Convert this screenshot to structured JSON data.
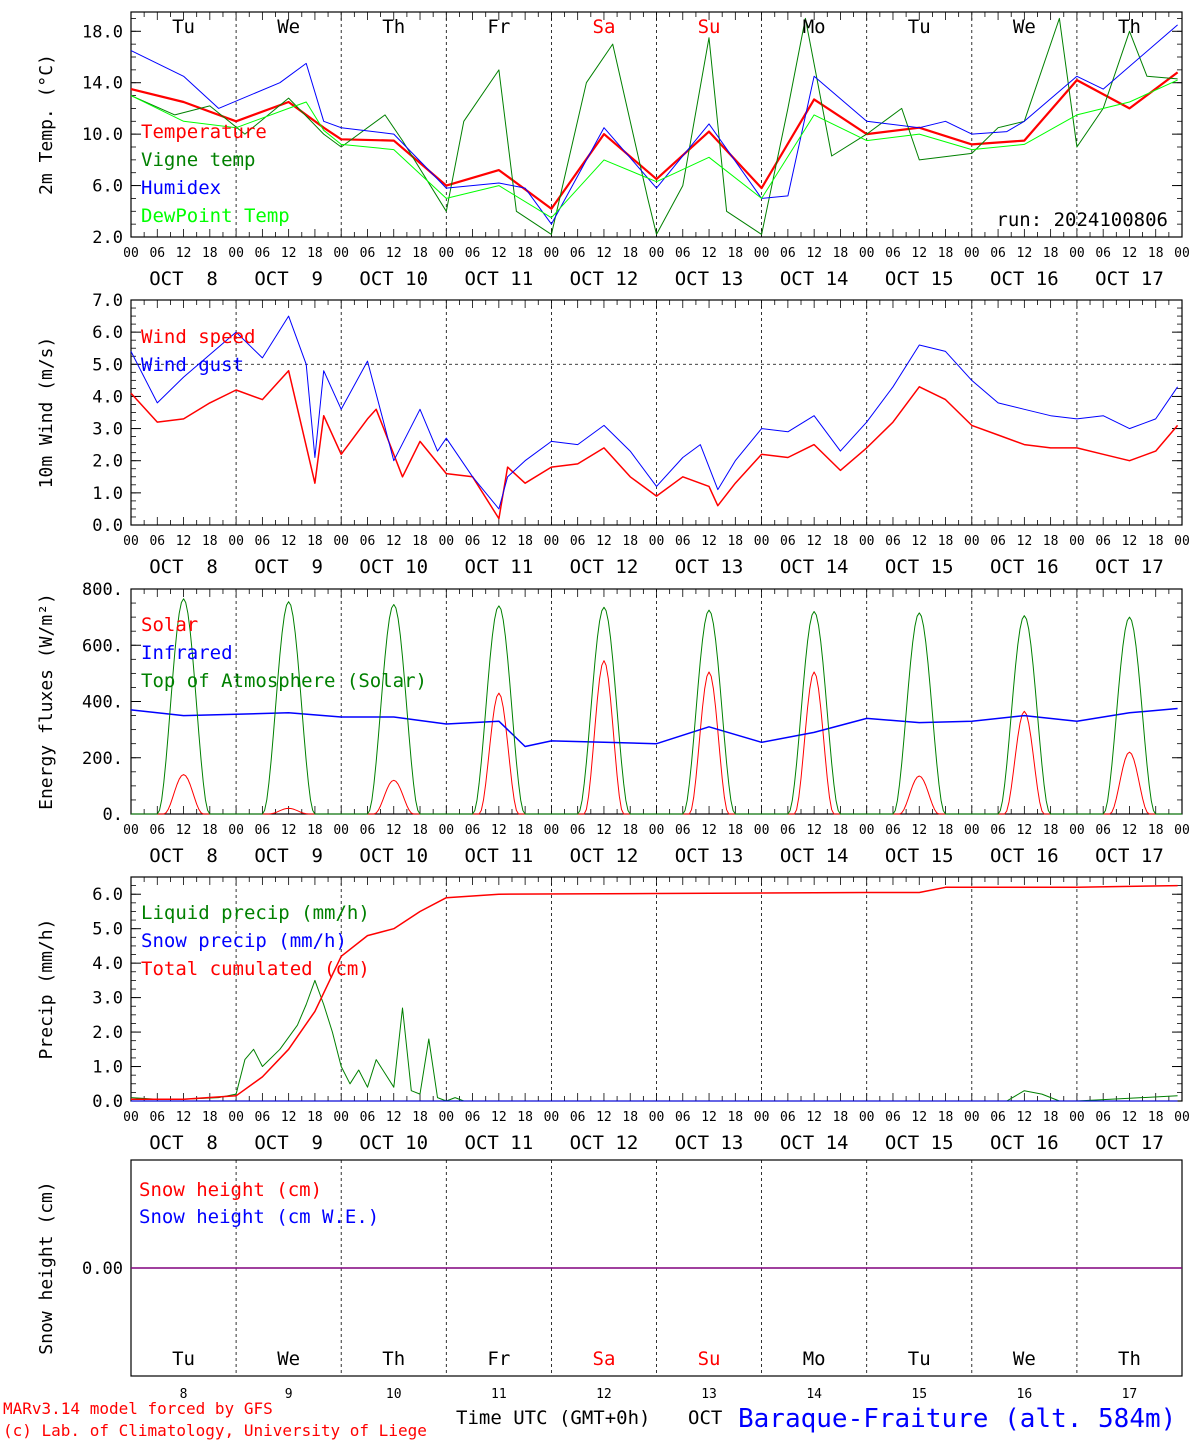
{
  "meta": {
    "run_label": "run: 2024100806",
    "model_credit": "MARv3.14 model forced by GFS",
    "lab_credit": "(c) Lab. of Climatology, University of Liege",
    "time_axis_label": "Time UTC (GMT+0h)",
    "month_label": "OCT",
    "station": "Baraque-Fraiture (alt. 584m)"
  },
  "colors": {
    "red": "#ff0000",
    "blue": "#0000ff",
    "green": "#008000",
    "lightgreen": "#00ff00",
    "purple": "#80007f",
    "weekend": "#ff0000"
  },
  "days": [
    {
      "abbr": "Tu",
      "date": "8",
      "weekend": false
    },
    {
      "abbr": "We",
      "date": "9",
      "weekend": false
    },
    {
      "abbr": "Th",
      "date": "10",
      "weekend": false
    },
    {
      "abbr": "Fr",
      "date": "11",
      "weekend": false
    },
    {
      "abbr": "Sa",
      "date": "12",
      "weekend": true
    },
    {
      "abbr": "Su",
      "date": "13",
      "weekend": true
    },
    {
      "abbr": "Mo",
      "date": "14",
      "weekend": false
    },
    {
      "abbr": "Tu",
      "date": "15",
      "weekend": false
    },
    {
      "abbr": "We",
      "date": "16",
      "weekend": false
    },
    {
      "abbr": "Th",
      "date": "17",
      "weekend": false
    }
  ],
  "hour_ticks": [
    "00",
    "06",
    "12",
    "18"
  ],
  "date_labels": [
    "OCT  8",
    "OCT  9",
    "OCT 10",
    "OCT 11",
    "OCT 12",
    "OCT 13",
    "OCT 14",
    "OCT 15",
    "OCT 16",
    "OCT 17"
  ],
  "chart_data": [
    {
      "type": "line",
      "ylabel": "2m Temp. (°C)",
      "ylim": [
        2,
        19.5
      ],
      "yticks": [
        2,
        6,
        10,
        14,
        18
      ],
      "ytick_labels": [
        "2.0",
        "6.0",
        "10.0",
        "14.0",
        "18.0"
      ],
      "x_unit": "hours since 00 UTC OCT 8",
      "series": [
        {
          "name": "Temperature",
          "color": "red",
          "width": 2.2,
          "x": [
            0,
            12,
            24,
            36,
            44,
            48,
            60,
            72,
            84,
            96,
            108,
            120,
            132,
            144,
            156,
            168,
            180,
            192,
            204,
            216,
            228,
            239
          ],
          "y": [
            13.5,
            12.5,
            11,
            12.5,
            10.5,
            9.6,
            9.5,
            6,
            7.2,
            4.2,
            10,
            6.5,
            10.2,
            5.8,
            12.7,
            10,
            10.5,
            9.2,
            9.5,
            14.2,
            12,
            14.8
          ]
        },
        {
          "name": "Vigne temp",
          "color": "green",
          "width": 1,
          "x": [
            0,
            10,
            18,
            26,
            36,
            44,
            48,
            58,
            62,
            72,
            76,
            84,
            88,
            96,
            104,
            110,
            118,
            120,
            126,
            132,
            136,
            144,
            150,
            154,
            160,
            168,
            176,
            180,
            192,
            198,
            204,
            212,
            216,
            222,
            228,
            232,
            239
          ],
          "y": [
            13,
            11.5,
            12.2,
            10,
            12.8,
            10,
            9,
            11.5,
            9.5,
            4,
            11,
            15,
            4,
            2.2,
            14,
            17,
            5,
            2.2,
            6,
            17.5,
            4,
            2.2,
            12,
            19,
            8.3,
            10,
            12,
            8,
            8.5,
            10.5,
            11,
            19,
            9,
            12,
            18,
            14.5,
            14.3
          ]
        },
        {
          "name": "Humidex",
          "color": "blue",
          "width": 1,
          "x": [
            0,
            12,
            20,
            34,
            40,
            44,
            48,
            60,
            72,
            84,
            90,
            96,
            108,
            120,
            132,
            144,
            150,
            156,
            168,
            180,
            186,
            192,
            200,
            204,
            216,
            222,
            239
          ],
          "y": [
            16.5,
            14.5,
            12,
            14,
            15.5,
            11,
            10.5,
            10,
            5.8,
            6.2,
            5.8,
            3,
            10.5,
            5.8,
            10.8,
            5,
            5.2,
            14.5,
            11,
            10.5,
            11,
            10,
            10.2,
            11,
            14.5,
            13.5,
            18.5
          ]
        },
        {
          "name": "DewPoint Temp",
          "color": "lightgreen",
          "width": 1,
          "x": [
            0,
            12,
            24,
            36,
            40,
            44,
            48,
            60,
            72,
            84,
            96,
            108,
            120,
            132,
            144,
            156,
            168,
            180,
            192,
            204,
            216,
            228,
            239
          ],
          "y": [
            13,
            11,
            10.5,
            12,
            12.5,
            10.3,
            9.2,
            8.8,
            5,
            6,
            3.5,
            8,
            6.3,
            8.2,
            5,
            11.5,
            9.5,
            10,
            8.8,
            9.2,
            11.5,
            12.5,
            14.2
          ]
        }
      ],
      "legend": [
        "Temperature",
        "Vigne temp",
        "Humidex",
        "DewPoint Temp"
      ]
    },
    {
      "type": "line",
      "ylabel": "10m Wind (m/s)",
      "ylim": [
        0,
        7
      ],
      "yticks": [
        0,
        1,
        2,
        3,
        4,
        5,
        6,
        7
      ],
      "ytick_labels": [
        "0.0",
        "1.0",
        "2.0",
        "3.0",
        "4.0",
        "5.0",
        "6.0",
        "7.0"
      ],
      "reference_line": 5,
      "series": [
        {
          "name": "Wind speed",
          "color": "red",
          "width": 1.5,
          "x": [
            0,
            6,
            12,
            18,
            24,
            30,
            36,
            42,
            44,
            48,
            54,
            56,
            62,
            66,
            72,
            78,
            84,
            86,
            90,
            96,
            102,
            108,
            114,
            120,
            126,
            132,
            134,
            138,
            144,
            150,
            156,
            162,
            168,
            174,
            180,
            186,
            192,
            198,
            204,
            210,
            216,
            222,
            228,
            234,
            239
          ],
          "y": [
            4.1,
            3.2,
            3.3,
            3.8,
            4.2,
            3.9,
            4.8,
            1.3,
            3.4,
            2.2,
            3.3,
            3.6,
            1.5,
            2.6,
            1.6,
            1.5,
            0.2,
            1.8,
            1.3,
            1.8,
            1.9,
            2.4,
            1.5,
            0.9,
            1.5,
            1.2,
            0.6,
            1.3,
            2.2,
            2.1,
            2.5,
            1.7,
            2.4,
            3.2,
            4.3,
            3.9,
            3.1,
            2.8,
            2.5,
            2.4,
            2.4,
            2.2,
            2.0,
            2.3,
            3.1
          ]
        },
        {
          "name": "Wind gust",
          "color": "blue",
          "width": 1,
          "x": [
            0,
            6,
            12,
            18,
            24,
            30,
            36,
            40,
            42,
            44,
            48,
            54,
            60,
            66,
            70,
            72,
            78,
            84,
            86,
            90,
            96,
            102,
            108,
            114,
            120,
            126,
            130,
            134,
            138,
            144,
            150,
            156,
            162,
            168,
            174,
            180,
            186,
            192,
            198,
            204,
            210,
            216,
            222,
            228,
            234,
            239
          ],
          "y": [
            5.4,
            3.8,
            4.6,
            5.3,
            6.0,
            5.2,
            6.5,
            5.0,
            2.1,
            4.8,
            3.6,
            5.1,
            2.0,
            3.6,
            2.3,
            2.7,
            1.5,
            0.5,
            1.5,
            2.0,
            2.6,
            2.5,
            3.1,
            2.3,
            1.2,
            2.1,
            2.5,
            1.1,
            2.0,
            3.0,
            2.9,
            3.4,
            2.3,
            3.2,
            4.3,
            5.6,
            5.4,
            4.5,
            3.8,
            3.6,
            3.4,
            3.3,
            3.4,
            3.0,
            3.3,
            4.3
          ]
        }
      ],
      "legend": [
        "Wind speed",
        "Wind gust"
      ]
    },
    {
      "type": "line",
      "ylabel": "Energy fluxes (W/m²)",
      "ylim": [
        0,
        800
      ],
      "yticks": [
        0,
        200,
        400,
        600,
        800
      ],
      "ytick_labels": [
        "0.",
        "200.",
        "400.",
        "600.",
        "800."
      ],
      "series": [
        {
          "name": "Solar",
          "color": "red",
          "width": 1,
          "daily_peaks": [
            140,
            20,
            120,
            430,
            545,
            505,
            505,
            135,
            365,
            220
          ]
        },
        {
          "name": "Infrared",
          "color": "blue",
          "width": 1.5,
          "x": [
            0,
            12,
            24,
            36,
            48,
            60,
            72,
            84,
            90,
            96,
            108,
            120,
            132,
            144,
            156,
            168,
            180,
            192,
            204,
            216,
            228,
            239
          ],
          "y": [
            370,
            350,
            355,
            360,
            345,
            345,
            320,
            330,
            240,
            260,
            255,
            250,
            310,
            255,
            290,
            340,
            325,
            330,
            350,
            330,
            360,
            375
          ]
        },
        {
          "name": "Top of Atmosphere (Solar)",
          "color": "green",
          "width": 1,
          "daily_peaks": [
            765,
            755,
            745,
            740,
            735,
            725,
            720,
            715,
            705,
            700
          ]
        }
      ],
      "legend": [
        "Solar",
        "Infrared",
        "Top of Atmosphere (Solar)"
      ]
    },
    {
      "type": "line",
      "ylabel": "Precip (mm/h)",
      "ylim": [
        0,
        6.5
      ],
      "yticks": [
        0,
        1,
        2,
        3,
        4,
        5,
        6
      ],
      "ytick_labels": [
        "0.0",
        "1.0",
        "2.0",
        "3.0",
        "4.0",
        "5.0",
        "6.0"
      ],
      "series": [
        {
          "name": "Liquid precip (mm/h)",
          "color": "green",
          "width": 1,
          "x": [
            0,
            6,
            12,
            20,
            24,
            26,
            28,
            30,
            34,
            38,
            40,
            42,
            44,
            46,
            48,
            50,
            52,
            54,
            56,
            60,
            62,
            64,
            66,
            68,
            70,
            72,
            74,
            76,
            200,
            204,
            208,
            212,
            216,
            239
          ],
          "y": [
            0.1,
            0.05,
            0.05,
            0.1,
            0.2,
            1.2,
            1.5,
            1.0,
            1.5,
            2.2,
            2.8,
            3.5,
            2.8,
            2.0,
            1.0,
            0.5,
            0.9,
            0.4,
            1.2,
            0.4,
            2.7,
            0.3,
            0.2,
            1.8,
            0.1,
            0.0,
            0.1,
            0.0,
            0.0,
            0.3,
            0.2,
            0.0,
            0.0,
            0.15
          ]
        },
        {
          "name": "Snow precip (mm/h)",
          "color": "blue",
          "width": 1,
          "x": [
            0,
            239
          ],
          "y": [
            0,
            0
          ]
        },
        {
          "name": "Total cumulated (cm)",
          "color": "red",
          "width": 1.5,
          "x": [
            0,
            12,
            24,
            30,
            36,
            42,
            48,
            54,
            60,
            66,
            72,
            84,
            120,
            168,
            180,
            186,
            216,
            239
          ],
          "y": [
            0.05,
            0.05,
            0.15,
            0.7,
            1.5,
            2.6,
            4.2,
            4.8,
            5.0,
            5.5,
            5.9,
            6.0,
            6.02,
            6.05,
            6.05,
            6.2,
            6.2,
            6.25
          ]
        }
      ],
      "legend": [
        "Liquid precip (mm/h)",
        "Snow precip (mm/h)",
        "Total cumulated (cm)"
      ]
    },
    {
      "type": "line",
      "ylabel": "Snow height (cm)",
      "ylim": [
        -1,
        1
      ],
      "yticks": [
        0
      ],
      "ytick_labels": [
        "0.00"
      ],
      "series": [
        {
          "name": "Snow height (cm)",
          "color": "red",
          "width": 1,
          "x": [
            0,
            240
          ],
          "y": [
            0,
            0
          ]
        },
        {
          "name": "Snow height (cm W.E.)",
          "color": "blue",
          "width": 1,
          "x": [
            0,
            240
          ],
          "y": [
            0,
            0
          ]
        }
      ],
      "legend": [
        "Snow height (cm)",
        "Snow height (cm W.E.)"
      ]
    }
  ]
}
